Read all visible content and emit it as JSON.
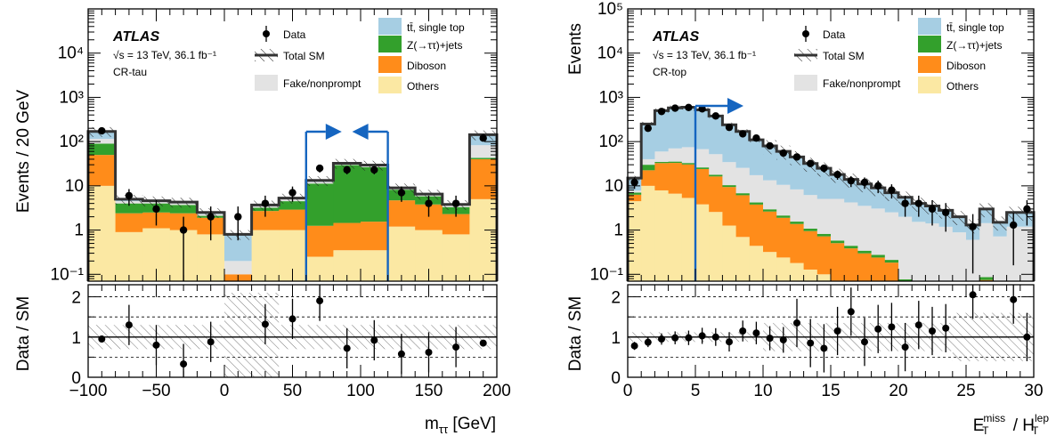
{
  "colors": {
    "ttbar": "#a6cee3",
    "ztautau": "#33a02c",
    "diboson": "#ff8c1a",
    "others": "#fbe8a3",
    "fake": "#e3e3e3",
    "arrow": "#1565c0",
    "total": "#333333"
  },
  "chart_data": [
    {
      "type": "bar",
      "ATLAS": "ATLAS",
      "energy": "√s = 13 TeV, 36.1 fb⁻¹",
      "region": "CR-tau",
      "ylabel": "Events / 20 GeV",
      "ratio_ylabel": "Data / SM",
      "xlabel": "m",
      "xlabel_sub": "ττ",
      "xlabel_unit": " [GeV]",
      "xlim": [
        -100,
        200
      ],
      "ylim": [
        0.07,
        100000
      ],
      "log_y": true,
      "ratio_ylim": [
        0,
        2.3
      ],
      "xticks": [
        -100,
        -50,
        0,
        50,
        100,
        150,
        200
      ],
      "yticks": [
        "10⁻¹",
        "1",
        "10",
        "10²",
        "10³",
        "10⁴"
      ],
      "ratio_yticks": [
        "0",
        "1",
        "2"
      ],
      "bin_edges": [
        -100,
        -80,
        -60,
        -40,
        -20,
        0,
        20,
        40,
        60,
        80,
        100,
        120,
        140,
        160,
        180,
        200
      ],
      "stack": {
        "others": [
          10,
          0.9,
          1.1,
          1.0,
          0.8,
          0.05,
          1.0,
          1.0,
          0.25,
          0.35,
          0.35,
          1.2,
          1.0,
          0.8,
          5.0
        ],
        "diboson": [
          40,
          1.5,
          1.4,
          1.4,
          1.1,
          0.05,
          1.7,
          1.9,
          1.0,
          1.1,
          1.2,
          3.5,
          2.8,
          1.5,
          35
        ],
        "ztautau": [
          40,
          1.6,
          1.5,
          1.3,
          0.2,
          0.0,
          0.5,
          1.6,
          10,
          28,
          25,
          3.5,
          2.0,
          1.0,
          3.0
        ],
        "fake": [
          25,
          0.5,
          0.3,
          0.3,
          0.2,
          0.1,
          0.3,
          0.5,
          1.0,
          1.5,
          1.5,
          0.5,
          0.5,
          0.3,
          40
        ],
        "ttbar": [
          55,
          0.5,
          0.3,
          0.3,
          0.2,
          0.6,
          0.2,
          0.3,
          1.0,
          1.5,
          1.5,
          0.3,
          0.2,
          0.2,
          60
        ]
      },
      "data": {
        "x": [
          -90,
          -70,
          -50,
          -30,
          -10,
          10,
          30,
          50,
          70,
          90,
          110,
          130,
          150,
          170,
          190
        ],
        "y": [
          175,
          6.0,
          3.0,
          1.0,
          2.0,
          2.0,
          4.0,
          7.0,
          25,
          23,
          23,
          7.0,
          4.0,
          4.0,
          120
        ]
      },
      "ratio": {
        "x": [
          -90,
          -70,
          -50,
          -30,
          -10,
          30,
          50,
          70,
          90,
          110,
          130,
          150,
          170,
          190
        ],
        "y": [
          0.95,
          1.3,
          0.8,
          0.33,
          0.88,
          1.32,
          1.45,
          1.9,
          0.72,
          0.92,
          0.58,
          0.62,
          0.75,
          0.85
        ]
      },
      "cut_arrows": [
        {
          "x": 60,
          "dir": "right"
        },
        {
          "x": 120,
          "dir": "left"
        }
      ],
      "legend": [
        {
          "key": "data",
          "label": "Data"
        },
        {
          "key": "total",
          "label": "Total SM"
        },
        {
          "key": "fake",
          "label": "Fake/nonprompt"
        },
        {
          "key": "ttbar",
          "label": "tt̄, single top"
        },
        {
          "key": "ztautau",
          "label": "Z(→ττ)+jets"
        },
        {
          "key": "diboson",
          "label": "Diboson"
        },
        {
          "key": "others",
          "label": "Others"
        }
      ]
    },
    {
      "type": "bar",
      "ATLAS": "ATLAS",
      "energy": "√s = 13 TeV, 36.1 fb⁻¹",
      "region": "CR-top",
      "ylabel": "Events",
      "ratio_ylabel": "Data / SM",
      "xlabel": "E",
      "xlabel_sub": "T",
      "xlabel_sup": "miss",
      "xlabel_mid": " / H",
      "xlabel_sub2": "T",
      "xlabel_sup2": "lep",
      "xlim": [
        0,
        30
      ],
      "ylim": [
        0.07,
        100000
      ],
      "log_y": true,
      "ratio_ylim": [
        0,
        2.3
      ],
      "xticks": [
        0,
        5,
        10,
        15,
        20,
        25,
        30
      ],
      "yticks": [
        "10⁻¹",
        "1",
        "10",
        "10²",
        "10³",
        "10⁴",
        "10⁵"
      ],
      "ratio_yticks": [
        "0",
        "1",
        "2"
      ],
      "bin_width": 1,
      "totals": [
        15,
        250,
        500,
        580,
        600,
        520,
        380,
        240,
        170,
        110,
        80,
        60,
        45,
        32,
        25,
        18,
        14,
        11,
        9,
        7,
        5.5,
        4,
        3.5,
        2.8,
        2,
        1.3,
        3,
        1.5,
        2.5,
        2.5
      ],
      "data": {
        "x": [
          0.5,
          1.5,
          2.5,
          3.5,
          4.5,
          5.5,
          6.5,
          7.5,
          8.5,
          9.5,
          10.5,
          11.5,
          12.5,
          13.5,
          14.5,
          15.5,
          16.5,
          17.5,
          18.5,
          19.5,
          20.5,
          21.5,
          22.5,
          23.5,
          25.5,
          28.5,
          29.5
        ],
        "y": [
          12,
          200,
          480,
          570,
          590,
          550,
          380,
          210,
          150,
          120,
          80,
          55,
          45,
          32,
          25,
          18,
          13,
          12,
          10,
          8,
          4,
          4,
          3,
          2.5,
          1.2,
          1.3,
          3
        ]
      },
      "ratio": {
        "x": [
          0.5,
          1.5,
          2.5,
          3.5,
          4.5,
          5.5,
          6.5,
          7.5,
          8.5,
          9.5,
          10.5,
          11.5,
          12.5,
          13.5,
          14.5,
          15.5,
          16.5,
          17.5,
          18.5,
          19.5,
          20.5,
          21.5,
          22.5,
          23.5,
          25.5,
          28.5,
          29.5
        ],
        "y": [
          0.78,
          0.87,
          0.95,
          0.98,
          0.98,
          1.03,
          1.0,
          0.88,
          1.15,
          1.1,
          0.97,
          0.93,
          1.35,
          0.85,
          0.72,
          1.15,
          1.63,
          0.88,
          1.2,
          1.25,
          0.75,
          1.3,
          1.15,
          1.22,
          2.05,
          1.93,
          1.0
        ]
      },
      "cut_arrows": [
        {
          "x": 5,
          "dir": "right"
        }
      ],
      "legend": [
        {
          "key": "data",
          "label": "Data"
        },
        {
          "key": "total",
          "label": "Total SM"
        },
        {
          "key": "fake",
          "label": "Fake/nonprompt"
        },
        {
          "key": "ttbar",
          "label": "tt̄, single top"
        },
        {
          "key": "ztautau",
          "label": "Z(→ττ)+jets"
        },
        {
          "key": "diboson",
          "label": "Diboson"
        },
        {
          "key": "others",
          "label": "Others"
        }
      ]
    }
  ]
}
